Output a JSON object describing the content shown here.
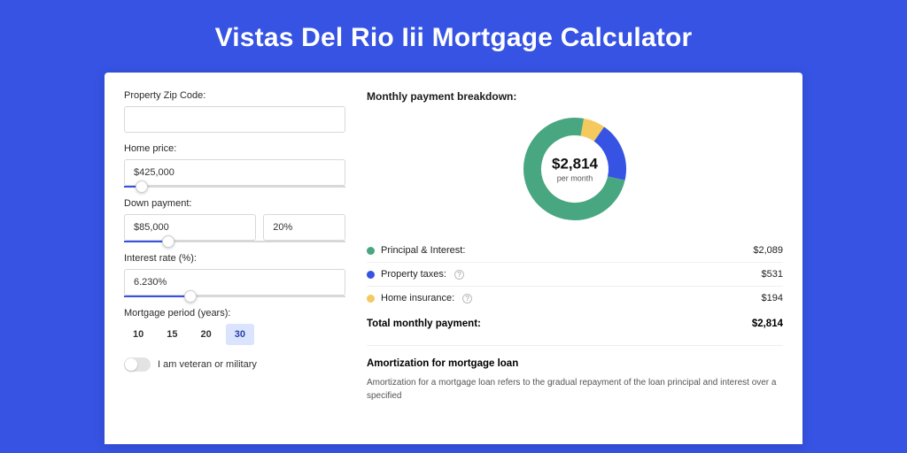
{
  "page": {
    "background_color": "#3653e3",
    "title": "Vistas Del Rio Iii Mortgage Calculator",
    "title_color": "#ffffff",
    "title_fontsize": 30
  },
  "form": {
    "zip": {
      "label": "Property Zip Code:",
      "value": ""
    },
    "home_price": {
      "label": "Home price:",
      "value": "$425,000",
      "slider_pct": 8
    },
    "down_payment": {
      "label": "Down payment:",
      "value": "$85,000",
      "pct_value": "20%",
      "slider_pct": 20
    },
    "interest_rate": {
      "label": "Interest rate (%):",
      "value": "6.230%",
      "slider_pct": 30
    },
    "mortgage_period": {
      "label": "Mortgage period (years):",
      "options": [
        "10",
        "15",
        "20",
        "30"
      ],
      "selected_index": 3
    },
    "veteran": {
      "label": "I am veteran or military",
      "on": false
    }
  },
  "breakdown": {
    "title": "Monthly payment breakdown:",
    "donut": {
      "center_value": "$2,814",
      "center_sub": "per month",
      "slices": [
        {
          "key": "principal_interest",
          "value": 2089,
          "color": "#48a781",
          "label": "Principal & Interest:"
        },
        {
          "key": "property_taxes",
          "value": 531,
          "color": "#3653e3",
          "label": "Property taxes:"
        },
        {
          "key": "home_insurance",
          "value": 194,
          "color": "#f4c95d",
          "label": "Home insurance:"
        }
      ],
      "ring_thickness": 20,
      "background_color": "#ffffff"
    },
    "rows": [
      {
        "dot_color": "#48a781",
        "label": "Principal & Interest:",
        "help": false,
        "value": "$2,089"
      },
      {
        "dot_color": "#3653e3",
        "label": "Property taxes:",
        "help": true,
        "value": "$531"
      },
      {
        "dot_color": "#f4c95d",
        "label": "Home insurance:",
        "help": true,
        "value": "$194"
      }
    ],
    "total": {
      "label": "Total monthly payment:",
      "value": "$2,814"
    }
  },
  "amortization": {
    "title": "Amortization for mortgage loan",
    "body": "Amortization for a mortgage loan refers to the gradual repayment of the loan principal and interest over a specified"
  }
}
